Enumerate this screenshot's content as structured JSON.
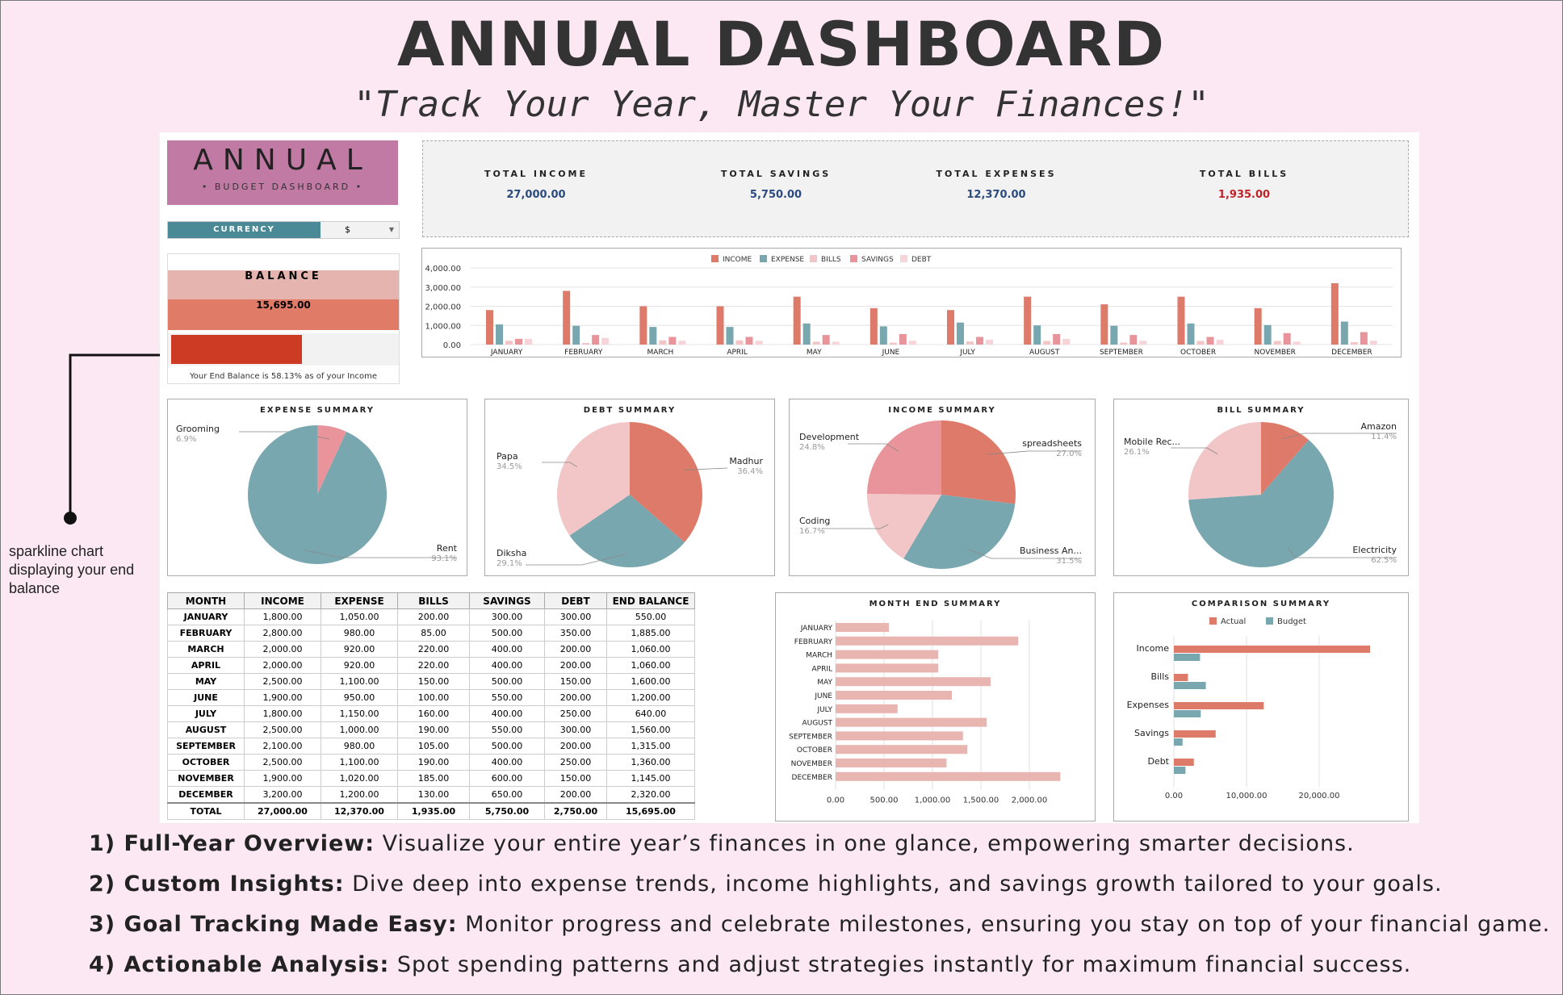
{
  "header": {
    "title": "ANNUAL DASHBOARD",
    "subtitle": "\"Track Your Year, Master Your Finances!\""
  },
  "brand": {
    "title": "ANNUAL",
    "subtitle": "• BUDGET DASHBOARD •",
    "color": "#c07aa4"
  },
  "currency": {
    "label": "CURRENCY",
    "value": "$"
  },
  "balance": {
    "label": "BALANCE",
    "amount": "15,695.00",
    "percent_of_income": 58.13,
    "caption": "Your End Balance is 58.13% as of your Income"
  },
  "annotation": {
    "text": "sparkline chart displaying your end balance"
  },
  "totals": [
    {
      "label": "TOTAL INCOME",
      "value": "27,000.00",
      "color": "#2b4a7e"
    },
    {
      "label": "TOTAL SAVINGS",
      "value": "5,750.00",
      "color": "#2b4a7e"
    },
    {
      "label": "TOTAL EXPENSES",
      "value": "12,370.00",
      "color": "#2b4a7e"
    },
    {
      "label": "TOTAL BILLS",
      "value": "1,935.00",
      "color": "#c0242a"
    }
  ],
  "colors": {
    "income": "#dd7a6a",
    "expense": "#78a7b0",
    "bills": "#f2c6c6",
    "savings": "#e8949a",
    "debt": "#f6d4d8"
  },
  "chart_data": [
    {
      "type": "bar",
      "title": "",
      "legend": [
        "INCOME",
        "EXPENSE",
        "BILLS",
        "SAVINGS",
        "DEBT"
      ],
      "legend_position": "top",
      "categories": [
        "JANUARY",
        "FEBRUARY",
        "MARCH",
        "APRIL",
        "MAY",
        "JUNE",
        "JULY",
        "AUGUST",
        "SEPTEMBER",
        "OCTOBER",
        "NOVEMBER",
        "DECEMBER"
      ],
      "ylim": [
        0,
        4000
      ],
      "yticks": [
        "0.00",
        "1,000.00",
        "2,000.00",
        "3,000.00",
        "4,000.00"
      ],
      "series": [
        {
          "name": "INCOME",
          "values": [
            1800,
            2800,
            2000,
            2000,
            2500,
            1900,
            1800,
            2500,
            2100,
            2500,
            1900,
            3200
          ]
        },
        {
          "name": "EXPENSE",
          "values": [
            1050,
            980,
            920,
            920,
            1100,
            950,
            1150,
            1000,
            980,
            1100,
            1020,
            1200
          ]
        },
        {
          "name": "BILLS",
          "values": [
            200,
            85,
            220,
            220,
            150,
            100,
            160,
            190,
            105,
            190,
            185,
            130
          ]
        },
        {
          "name": "SAVINGS",
          "values": [
            300,
            500,
            400,
            400,
            500,
            550,
            400,
            550,
            500,
            400,
            600,
            650
          ]
        },
        {
          "name": "DEBT",
          "values": [
            300,
            350,
            200,
            200,
            150,
            200,
            250,
            300,
            200,
            250,
            150,
            200
          ]
        }
      ]
    },
    {
      "type": "pie",
      "title": "EXPENSE SUMMARY",
      "slices": [
        {
          "label": "Grooming",
          "pct": "6.9%",
          "value": 6.9
        },
        {
          "label": "Rent",
          "pct": "93.1%",
          "value": 93.1
        }
      ]
    },
    {
      "type": "pie",
      "title": "DEBT SUMMARY",
      "slices": [
        {
          "label": "Madhur",
          "pct": "36.4%",
          "value": 36.4
        },
        {
          "label": "Diksha",
          "pct": "29.1%",
          "value": 29.1
        },
        {
          "label": "Papa",
          "pct": "34.5%",
          "value": 34.5
        }
      ]
    },
    {
      "type": "pie",
      "title": "INCOME SUMMARY",
      "slices": [
        {
          "label": "spreadsheets",
          "pct": "27.0%",
          "value": 27.0
        },
        {
          "label": "Business An...",
          "pct": "31.5%",
          "value": 31.5
        },
        {
          "label": "Coding",
          "pct": "16.7%",
          "value": 16.7
        },
        {
          "label": "Development",
          "pct": "24.8%",
          "value": 24.8
        }
      ]
    },
    {
      "type": "pie",
      "title": "BILL SUMMARY",
      "slices": [
        {
          "label": "Amazon",
          "pct": "11.4%",
          "value": 11.4
        },
        {
          "label": "Electricity",
          "pct": "62.5%",
          "value": 62.5
        },
        {
          "label": "Mobile Rec...",
          "pct": "26.1%",
          "value": 26.1
        }
      ]
    },
    {
      "type": "bar",
      "title": "MONTH END SUMMARY",
      "orientation": "horizontal",
      "categories": [
        "JANUARY",
        "FEBRUARY",
        "MARCH",
        "APRIL",
        "MAY",
        "JUNE",
        "JULY",
        "AUGUST",
        "SEPTEMBER",
        "OCTOBER",
        "NOVEMBER",
        "DECEMBER"
      ],
      "values": [
        550,
        1885,
        1060,
        1060,
        1600,
        1200,
        640,
        1560,
        1315,
        1360,
        1145,
        2320
      ],
      "xlim": [
        0,
        2500
      ],
      "xticks": [
        "0.00",
        "500.00",
        "1,000.00",
        "1,500.00",
        "2,000.00"
      ]
    },
    {
      "type": "bar",
      "title": "COMPARISON SUMMARY",
      "orientation": "horizontal",
      "legend": [
        "Actual",
        "Budget"
      ],
      "categories": [
        "Income",
        "Bills",
        "Expenses",
        "Savings",
        "Debt"
      ],
      "series": [
        {
          "name": "Actual",
          "values": [
            27000,
            1935,
            12370,
            5750,
            2750
          ]
        },
        {
          "name": "Budget",
          "values": [
            3600,
            4400,
            3700,
            1200,
            1600
          ]
        }
      ],
      "xlim": [
        0,
        30000
      ],
      "xticks": [
        "0.00",
        "10,000.00",
        "20,000.00"
      ]
    }
  ],
  "table": {
    "headers": [
      "MONTH",
      "INCOME",
      "EXPENSE",
      "BILLS",
      "SAVINGS",
      "DEBT",
      "END BALANCE"
    ],
    "rows": [
      [
        "JANUARY",
        "1,800.00",
        "1,050.00",
        "200.00",
        "300.00",
        "300.00",
        "550.00"
      ],
      [
        "FEBRUARY",
        "2,800.00",
        "980.00",
        "85.00",
        "500.00",
        "350.00",
        "1,885.00"
      ],
      [
        "MARCH",
        "2,000.00",
        "920.00",
        "220.00",
        "400.00",
        "200.00",
        "1,060.00"
      ],
      [
        "APRIL",
        "2,000.00",
        "920.00",
        "220.00",
        "400.00",
        "200.00",
        "1,060.00"
      ],
      [
        "MAY",
        "2,500.00",
        "1,100.00",
        "150.00",
        "500.00",
        "150.00",
        "1,600.00"
      ],
      [
        "JUNE",
        "1,900.00",
        "950.00",
        "100.00",
        "550.00",
        "200.00",
        "1,200.00"
      ],
      [
        "JULY",
        "1,800.00",
        "1,150.00",
        "160.00",
        "400.00",
        "250.00",
        "640.00"
      ],
      [
        "AUGUST",
        "2,500.00",
        "1,000.00",
        "190.00",
        "550.00",
        "300.00",
        "1,560.00"
      ],
      [
        "SEPTEMBER",
        "2,100.00",
        "980.00",
        "105.00",
        "500.00",
        "200.00",
        "1,315.00"
      ],
      [
        "OCTOBER",
        "2,500.00",
        "1,100.00",
        "190.00",
        "400.00",
        "250.00",
        "1,360.00"
      ],
      [
        "NOVEMBER",
        "1,900.00",
        "1,020.00",
        "185.00",
        "600.00",
        "150.00",
        "1,145.00"
      ],
      [
        "DECEMBER",
        "3,200.00",
        "1,200.00",
        "130.00",
        "650.00",
        "200.00",
        "2,320.00"
      ]
    ],
    "total": [
      "TOTAL",
      "27,000.00",
      "12,370.00",
      "1,935.00",
      "5,750.00",
      "2,750.00",
      "15,695.00"
    ]
  },
  "features": [
    {
      "head": "1) Full-Year Overview:",
      "text": " Visualize your entire year’s finances in one glance, empowering smarter decisions."
    },
    {
      "head": "2) Custom Insights:",
      "text": " Dive deep into expense trends, income highlights, and savings growth tailored to your goals."
    },
    {
      "head": "3) Goal Tracking Made Easy:",
      "text": " Monitor progress and celebrate milestones, ensuring you stay on top of your financial game."
    },
    {
      "head": "4) Actionable Analysis:",
      "text": " Spot spending patterns and adjust strategies instantly for maximum financial success."
    }
  ]
}
